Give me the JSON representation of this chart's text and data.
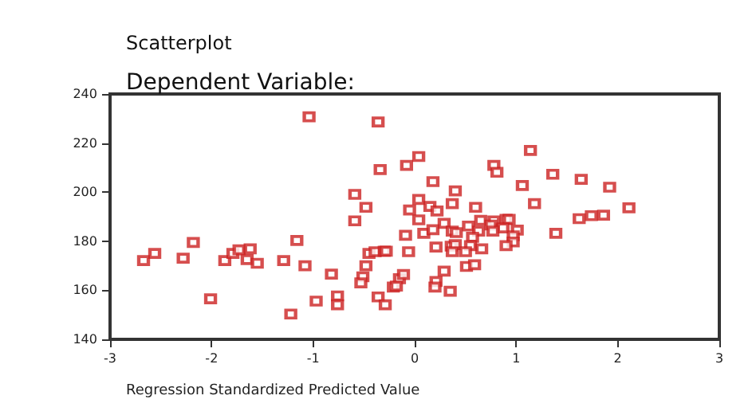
{
  "chart_data": {
    "type": "scatter",
    "title": "Scatterplot",
    "subtitle": "Dependent Variable:",
    "xlabel": "Regression Standardized Predicted Value",
    "x": [
      -1.04,
      -0.36,
      -0.34,
      -0.59,
      -0.48,
      -0.59,
      -2.18,
      -1.16,
      -2.67,
      -2.56,
      -2.28,
      -1.87,
      -1.79,
      -1.73,
      -1.62,
      -1.65,
      -1.55,
      -1.29,
      -1.08,
      -0.82,
      -0.51,
      -0.53,
      -0.48,
      -0.45,
      -0.39,
      -0.3,
      -0.28,
      -0.21,
      -2.01,
      -1.22,
      -0.97,
      -0.76,
      -0.76,
      -0.36,
      -0.29,
      -0.15,
      0.04,
      -0.08,
      1.14,
      0.78,
      0.81,
      0.18,
      0.4,
      1.36,
      1.64,
      1.92,
      1.06,
      0.04,
      -0.05,
      0.15,
      0.22,
      0.37,
      0.6,
      1.18,
      2.11,
      0.04,
      0.65,
      0.78,
      0.9,
      0.93,
      1.62,
      1.74,
      1.86,
      0.29,
      0.53,
      0.75,
      0.87,
      1.01,
      0.09,
      0.18,
      0.37,
      0.41,
      0.63,
      0.77,
      -0.09,
      1.39,
      0.97,
      0.57,
      0.97,
      0.9,
      0.21,
      0.36,
      0.4,
      0.55,
      0.66,
      -0.06,
      0.37,
      0.5,
      0.51,
      0.59,
      0.29,
      -0.11,
      -0.18,
      0.21,
      0.2,
      0.35
    ],
    "values": [
      230.7,
      228.6,
      209.2,
      199.1,
      193.8,
      188.3,
      179.5,
      180.3,
      172.1,
      175,
      173.1,
      172.1,
      175,
      176.5,
      176.9,
      172.5,
      171,
      172.1,
      170,
      166.6,
      165.5,
      163,
      170,
      175,
      175.7,
      175.9,
      175.9,
      161.3,
      156.5,
      150.3,
      155.6,
      157.7,
      154.1,
      157.3,
      154.1,
      164.7,
      214.5,
      210.9,
      217,
      210.9,
      208.1,
      204.3,
      200.5,
      207.3,
      205.2,
      202,
      202.7,
      197,
      192.7,
      194.2,
      192.3,
      195.3,
      193.8,
      195.3,
      193.6,
      188.7,
      188.5,
      188.3,
      188.9,
      188.9,
      189.2,
      190.4,
      190.6,
      187.3,
      186.2,
      186.6,
      185.4,
      184.5,
      183.2,
      184.7,
      184.1,
      183.5,
      184.1,
      184.1,
      182.4,
      183.2,
      182.2,
      181.6,
      179.7,
      178.2,
      177.6,
      178,
      178.6,
      178.2,
      176.9,
      175.7,
      175.7,
      175.7,
      169.7,
      170.4,
      167.8,
      166.4,
      161.7,
      163.6,
      161.3,
      159.6
    ],
    "color": "#cc2222",
    "marker": "square",
    "grid": false,
    "xlim": [
      -3,
      3
    ],
    "xticks": [
      -3,
      -2,
      -1,
      0,
      1,
      2,
      3
    ],
    "ylim": [
      140,
      240
    ],
    "yticks": [
      140,
      160,
      180,
      200,
      220,
      240
    ]
  }
}
